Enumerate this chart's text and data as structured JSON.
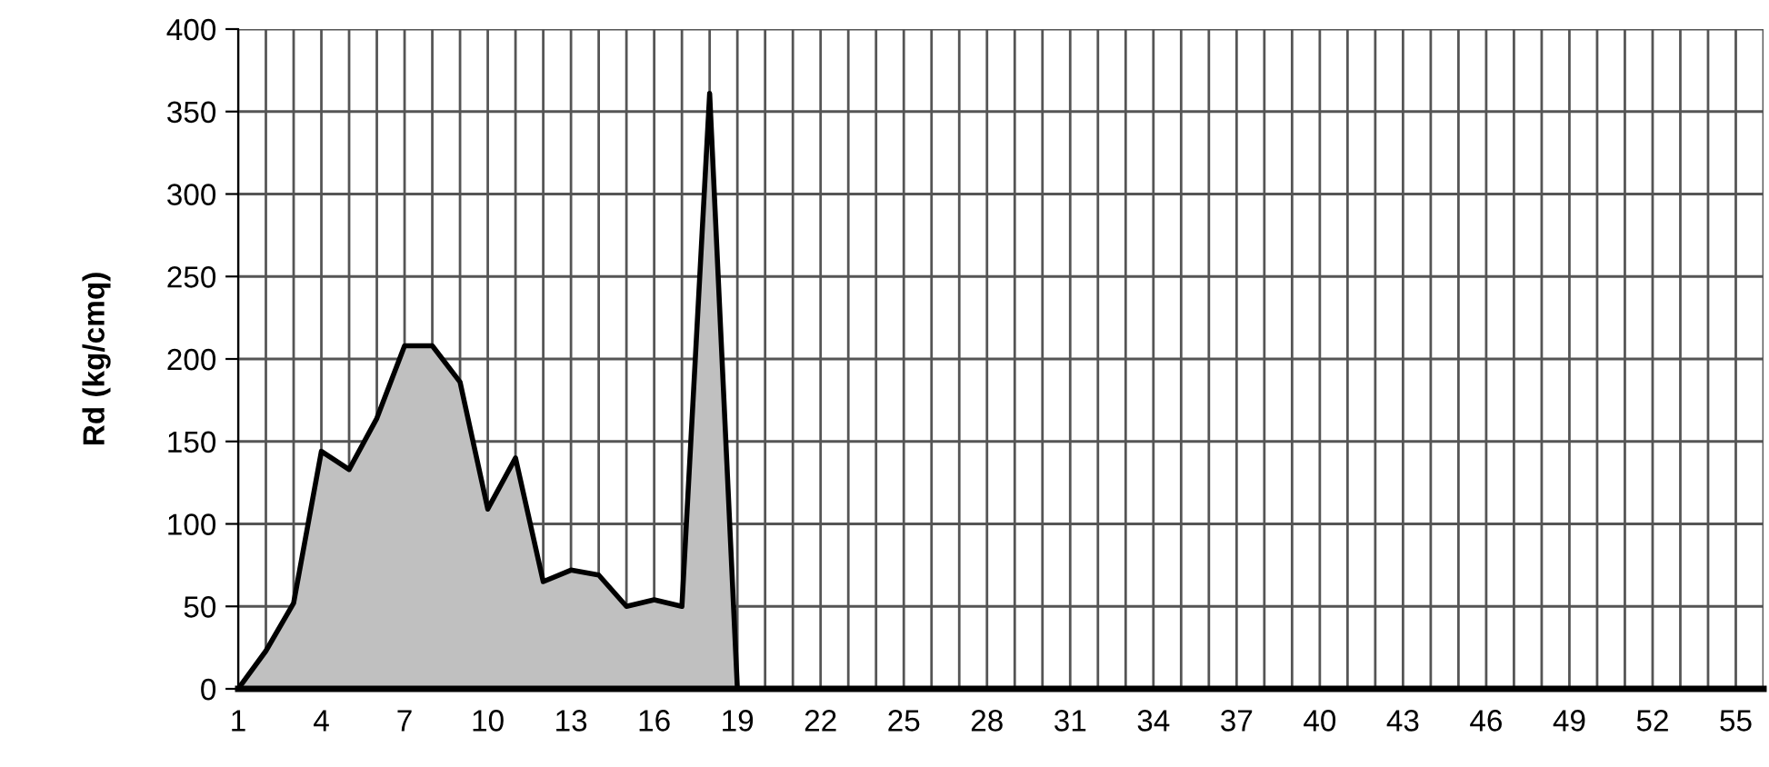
{
  "chart_data": {
    "type": "area",
    "ylabel": "Rd (kg/cmq)",
    "categories": [
      "1",
      null,
      null,
      "4",
      null,
      null,
      "7",
      null,
      null,
      "10",
      null,
      null,
      "13",
      null,
      null,
      "16",
      null,
      null,
      "19",
      null,
      null,
      "22",
      null,
      null,
      "25",
      null,
      null,
      "28",
      null,
      null,
      "31",
      null,
      null,
      "34",
      null,
      null,
      "37",
      null,
      null,
      "40",
      null,
      null,
      "43",
      null,
      null,
      "46",
      null,
      null,
      "49",
      null,
      null,
      "52",
      null,
      null,
      "55",
      null
    ],
    "series": [
      {
        "color": "#c0c0c0",
        "values": [
          0,
          23,
          52,
          144,
          133,
          164,
          208,
          208,
          186,
          109,
          140,
          65,
          72,
          69,
          50,
          54,
          50,
          361,
          0,
          0,
          0,
          0,
          0,
          0,
          0,
          0,
          0,
          0,
          0,
          0,
          0,
          0,
          0,
          0,
          0,
          0,
          0,
          0,
          0,
          0,
          0,
          0,
          0,
          0,
          0,
          0,
          0,
          0,
          0,
          0,
          0,
          0,
          0,
          0,
          0,
          0
        ]
      }
    ],
    "ylim": [
      0,
      400
    ],
    "yticks": [
      0,
      50,
      100,
      150,
      200,
      250,
      300,
      350,
      400
    ],
    "grid": true
  }
}
